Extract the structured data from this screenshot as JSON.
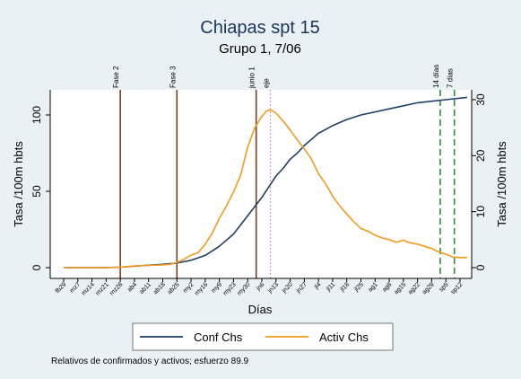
{
  "chart_data": {
    "type": "line",
    "title": "Chiapas spt 15",
    "subtitle": "Grupo 1,  7/06",
    "xlabel": "Días",
    "ylabel_left": "Tasa /100m hbts",
    "ylabel_right": "Tasa /100m hbts",
    "note": "Relativos de confirmados y activos; esfuerzo 89.9",
    "x_ticks": [
      "fb29",
      "mz7",
      "mz14",
      "mz21",
      "mz28",
      "ab4",
      "ab11",
      "ab18",
      "ab25",
      "my2",
      "my16",
      "my9",
      "my23",
      "my30",
      "jn6",
      "jn13",
      "jn20",
      "jn27",
      "jl4",
      "jl11",
      "jl18",
      "jl25",
      "ag1",
      "ag8",
      "ag15",
      "ag22",
      "ag29",
      "sp5",
      "sp12"
    ],
    "ylim_left": [
      0,
      110
    ],
    "yticks_left": [
      "0",
      "50",
      "100"
    ],
    "ylim_right": [
      0,
      30
    ],
    "yticks_right": [
      "0",
      "10",
      "20",
      "30"
    ],
    "events": [
      {
        "x": 4,
        "label": "Fase 2",
        "color": "#7b3d22",
        "style": "solid"
      },
      {
        "x": 8,
        "label": "Fase 3",
        "color": "#7b3d22",
        "style": "solid"
      },
      {
        "x": 13.6,
        "label": "junio 1",
        "color": "#7b3d22",
        "style": "solid"
      },
      {
        "x": 14.6,
        "label": "eje",
        "color": "#d08bd2",
        "style": "dotted"
      },
      {
        "x": 26.6,
        "label": "14 días",
        "color": "#2e8b3f",
        "style": "dashed"
      },
      {
        "x": 27.6,
        "label": "7 días",
        "color": "#2e8b3f",
        "style": "dashed"
      }
    ],
    "series": [
      {
        "name": "Conf Chs",
        "color": "#1e3f66",
        "axis": "left",
        "x": [
          0,
          1,
          2,
          3,
          4,
          5,
          6,
          7,
          8,
          9,
          10,
          11,
          12,
          13,
          13.5,
          14,
          14.5,
          15,
          15.5,
          16,
          16.5,
          17,
          17.5,
          18,
          19,
          20,
          21,
          22,
          23,
          24,
          25,
          26,
          27,
          28,
          28.5
        ],
        "y": [
          0,
          0,
          0,
          0,
          0.3,
          1,
          1.6,
          2.2,
          3,
          4.8,
          8,
          14,
          22,
          34,
          40,
          46,
          53,
          60,
          65,
          71,
          75,
          80,
          84,
          88,
          93,
          97,
          100,
          102,
          104,
          106,
          108,
          109,
          110,
          111,
          111.5
        ]
      },
      {
        "name": "Activ Chs",
        "color": "#f39a1f",
        "axis": "right",
        "x": [
          0,
          1,
          2,
          3,
          4,
          4.5,
          5,
          6,
          7,
          7.5,
          8,
          8.5,
          9,
          9.5,
          10,
          10.5,
          11,
          11.5,
          12,
          12.5,
          13,
          13.5,
          14,
          14.3,
          14.6,
          15,
          15.5,
          16,
          16.5,
          17,
          17.5,
          18,
          18.5,
          19,
          19.5,
          20,
          20.5,
          21,
          21.5,
          22,
          22.5,
          23,
          23.5,
          24,
          24.5,
          25,
          25.5,
          26,
          26.5,
          27,
          27.5,
          28,
          28.5
        ],
        "y": [
          0,
          0,
          0,
          0,
          0.1,
          0.2,
          0.3,
          0.4,
          0.5,
          0.6,
          0.9,
          1.5,
          2.2,
          2.7,
          4.2,
          6.2,
          8.8,
          11,
          13.5,
          16.5,
          21.5,
          25,
          27,
          27.9,
          28.2,
          27.6,
          26.2,
          24.6,
          22.8,
          21.2,
          19.4,
          16.8,
          15,
          12.8,
          11,
          9.6,
          8.2,
          7,
          6.5,
          5.8,
          5.3,
          5,
          4.5,
          4.9,
          4.4,
          4.2,
          3.8,
          3.4,
          2.8,
          2.4,
          1.9,
          1.8,
          1.8
        ]
      }
    ],
    "legend": "bottom"
  }
}
